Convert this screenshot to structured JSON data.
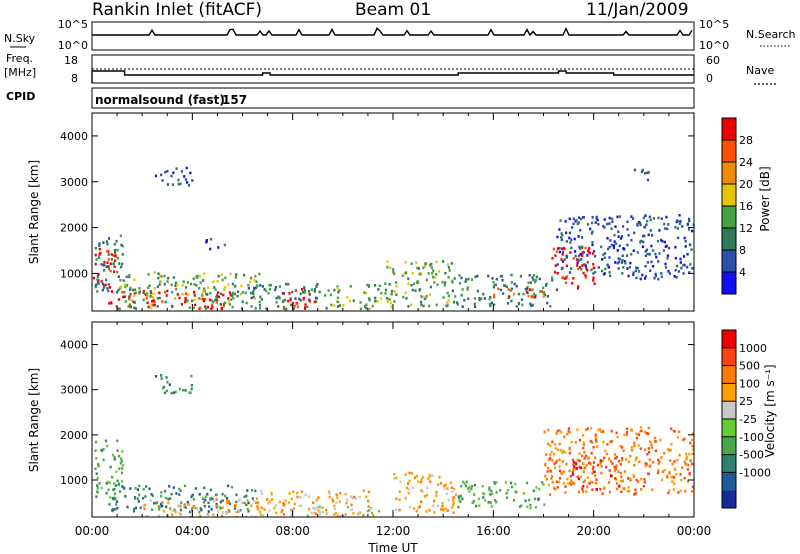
{
  "header": {
    "station": "Rankin Inlet (fitACF)",
    "beam": "Beam 01",
    "date": "11/Jan/2009"
  },
  "status_panels": {
    "nsky": {
      "left_label": "N.Sky",
      "left_ticks": [
        "10^5",
        "10^0"
      ],
      "right_label": "N.Search",
      "right_ticks": [
        "10^5",
        "10^0"
      ]
    },
    "freq": {
      "left_label_1": "Freq.",
      "left_label_2": "[MHz]",
      "left_ticks": [
        "18",
        "8"
      ],
      "right_label": "Nave",
      "right_ticks": [
        "60",
        "0"
      ],
      "cpid_label": "CPID",
      "program": "normalsound (fast)",
      "cpid": "157"
    }
  },
  "chart_data": [
    {
      "type": "heatmap",
      "panel": "power",
      "ylabel": "Slant Range [km]",
      "xlabel": "",
      "y_ticks": [
        "1000",
        "2000",
        "3000",
        "4000"
      ],
      "ylim": [
        180,
        4500
      ],
      "xlim_hours": [
        0,
        24
      ],
      "colorbar_label": "Power [dB]",
      "colorbar_ticks": [
        "4",
        "8",
        "12",
        "16",
        "20",
        "24",
        "28"
      ],
      "colors": [
        "#1010ee",
        "#2a50a8",
        "#2e7a5a",
        "#44a040",
        "#e6c400",
        "#f08c00",
        "#ff5000",
        "#ee0000"
      ],
      "regions": [
        {
          "t0": 0.0,
          "t1": 0.9,
          "r0": 700,
          "r1": 1600,
          "cl": 7
        },
        {
          "t0": 0.1,
          "t1": 1.2,
          "r0": 600,
          "r1": 1900,
          "cl": 2
        },
        {
          "t0": 0.6,
          "t1": 5.5,
          "r0": 250,
          "r1": 650,
          "cl": 7
        },
        {
          "t0": 1.0,
          "t1": 6.8,
          "r0": 250,
          "r1": 1050,
          "cl": 3
        },
        {
          "t0": 2.5,
          "t1": 4.0,
          "r0": 2950,
          "r1": 3350,
          "cl": 1
        },
        {
          "t0": 4.5,
          "t1": 5.4,
          "r0": 1550,
          "r1": 1800,
          "cl": 1
        },
        {
          "t0": 6.0,
          "t1": 9.5,
          "r0": 250,
          "r1": 800,
          "cl": 2
        },
        {
          "t0": 7.6,
          "t1": 8.9,
          "r0": 250,
          "r1": 700,
          "cl": 7
        },
        {
          "t0": 9.5,
          "t1": 11.5,
          "r0": 250,
          "r1": 800,
          "cl": 3
        },
        {
          "t0": 11.6,
          "t1": 14.5,
          "r0": 300,
          "r1": 1300,
          "cl": 3
        },
        {
          "t0": 14.5,
          "t1": 18.5,
          "r0": 300,
          "r1": 1000,
          "cl": 2
        },
        {
          "t0": 15.8,
          "t1": 18.0,
          "r0": 500,
          "r1": 700,
          "cl": 6
        },
        {
          "t0": 18.3,
          "t1": 20.0,
          "r0": 700,
          "r1": 1600,
          "cl": 7
        },
        {
          "t0": 18.5,
          "t1": 24.0,
          "r0": 900,
          "r1": 2300,
          "cl": 1
        },
        {
          "t0": 21.6,
          "t1": 22.2,
          "r0": 3050,
          "r1": 3400,
          "cl": 1
        }
      ]
    },
    {
      "type": "heatmap",
      "panel": "velocity",
      "ylabel": "Slant Range [km]",
      "xlabel": "Time UT",
      "x_ticks": [
        "00:00",
        "04:00",
        "08:00",
        "12:00",
        "16:00",
        "20:00",
        "00:00"
      ],
      "y_ticks": [
        "1000",
        "2000",
        "3000",
        "4000"
      ],
      "ylim": [
        180,
        4500
      ],
      "xlim_hours": [
        0,
        24
      ],
      "colorbar_label": "Velocity [m s⁻¹]",
      "colorbar_ticks": [
        "1000",
        "500",
        "100",
        "25",
        "-25",
        "-100",
        "-500",
        "-1000"
      ],
      "colors": [
        "#1a2a9a",
        "#1e5a9a",
        "#2e8070",
        "#4aa84a",
        "#66cc33",
        "#c8c8c8",
        "#ffa000",
        "#ff7a00",
        "#ff4010",
        "#ee0000"
      ],
      "regions": [
        {
          "t0": 0.0,
          "t1": 1.2,
          "r0": 600,
          "r1": 1900,
          "cl": 3
        },
        {
          "t0": 0.5,
          "t1": 6.5,
          "r0": 300,
          "r1": 900,
          "cl": 2
        },
        {
          "t0": 2.0,
          "t1": 6.8,
          "r0": 200,
          "r1": 600,
          "cl": 6
        },
        {
          "t0": 6.5,
          "t1": 11.0,
          "r0": 250,
          "r1": 800,
          "cl": 6
        },
        {
          "t0": 8.5,
          "t1": 11.5,
          "r0": 200,
          "r1": 450,
          "cl": 5
        },
        {
          "t0": 12.0,
          "t1": 14.5,
          "r0": 300,
          "r1": 1200,
          "cl": 6
        },
        {
          "t0": 14.5,
          "t1": 18.0,
          "r0": 400,
          "r1": 1000,
          "cl": 3
        },
        {
          "t0": 18.0,
          "t1": 24.0,
          "r0": 700,
          "r1": 2200,
          "cl": 7
        },
        {
          "t0": 19.0,
          "t1": 21.0,
          "r0": 800,
          "r1": 1500,
          "cl": 8
        },
        {
          "t0": 2.5,
          "t1": 4.0,
          "r0": 2950,
          "r1": 3350,
          "cl": 2
        }
      ]
    }
  ]
}
